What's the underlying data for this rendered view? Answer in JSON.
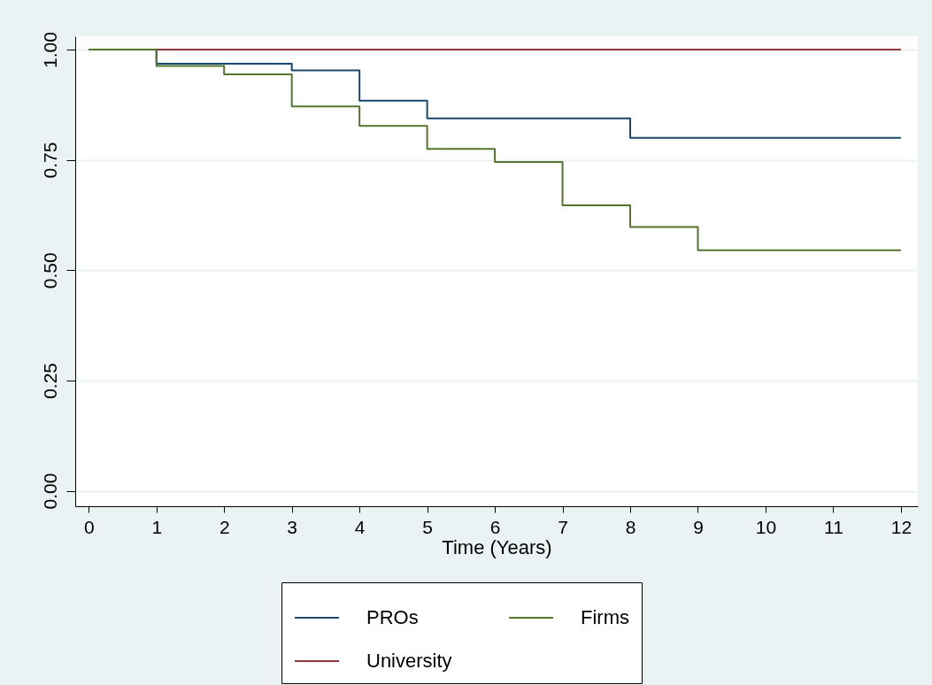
{
  "chart_data": {
    "type": "step",
    "xlabel": "Time (Years)",
    "x": [
      0,
      1,
      2,
      3,
      4,
      5,
      6,
      7,
      8,
      9,
      10,
      11,
      12
    ],
    "series": [
      {
        "name": "PROs",
        "color": "#1a476f",
        "values": [
          1,
          0.968,
          0.968,
          0.953,
          0.884,
          0.844,
          0.844,
          0.844,
          0.8,
          0.8,
          0.8,
          0.8,
          0.8
        ]
      },
      {
        "name": "University",
        "color": "#90353b",
        "values": [
          1,
          1,
          1,
          1,
          1,
          1,
          1,
          1,
          1,
          1,
          1,
          1,
          1
        ]
      },
      {
        "name": "Firms",
        "color": "#55752f",
        "values": [
          1,
          0.963,
          0.944,
          0.871,
          0.827,
          0.775,
          0.745,
          0.647,
          0.598,
          0.545,
          0.545,
          0.545,
          0.545
        ]
      }
    ],
    "xlim": [
      -0.2,
      12.25
    ],
    "ylim": [
      -0.035,
      1.03
    ],
    "xticks": [
      0,
      1,
      2,
      3,
      4,
      5,
      6,
      7,
      8,
      9,
      10,
      11,
      12
    ],
    "yticks": [
      {
        "value": 0,
        "label": "0.00"
      },
      {
        "value": 0.25,
        "label": "0.25"
      },
      {
        "value": 0.5,
        "label": "0.50"
      },
      {
        "value": 0.75,
        "label": "0.75"
      },
      {
        "value": 1,
        "label": "1.00"
      }
    ],
    "grid": "y",
    "legend": "bottom",
    "line_style": "solid"
  }
}
